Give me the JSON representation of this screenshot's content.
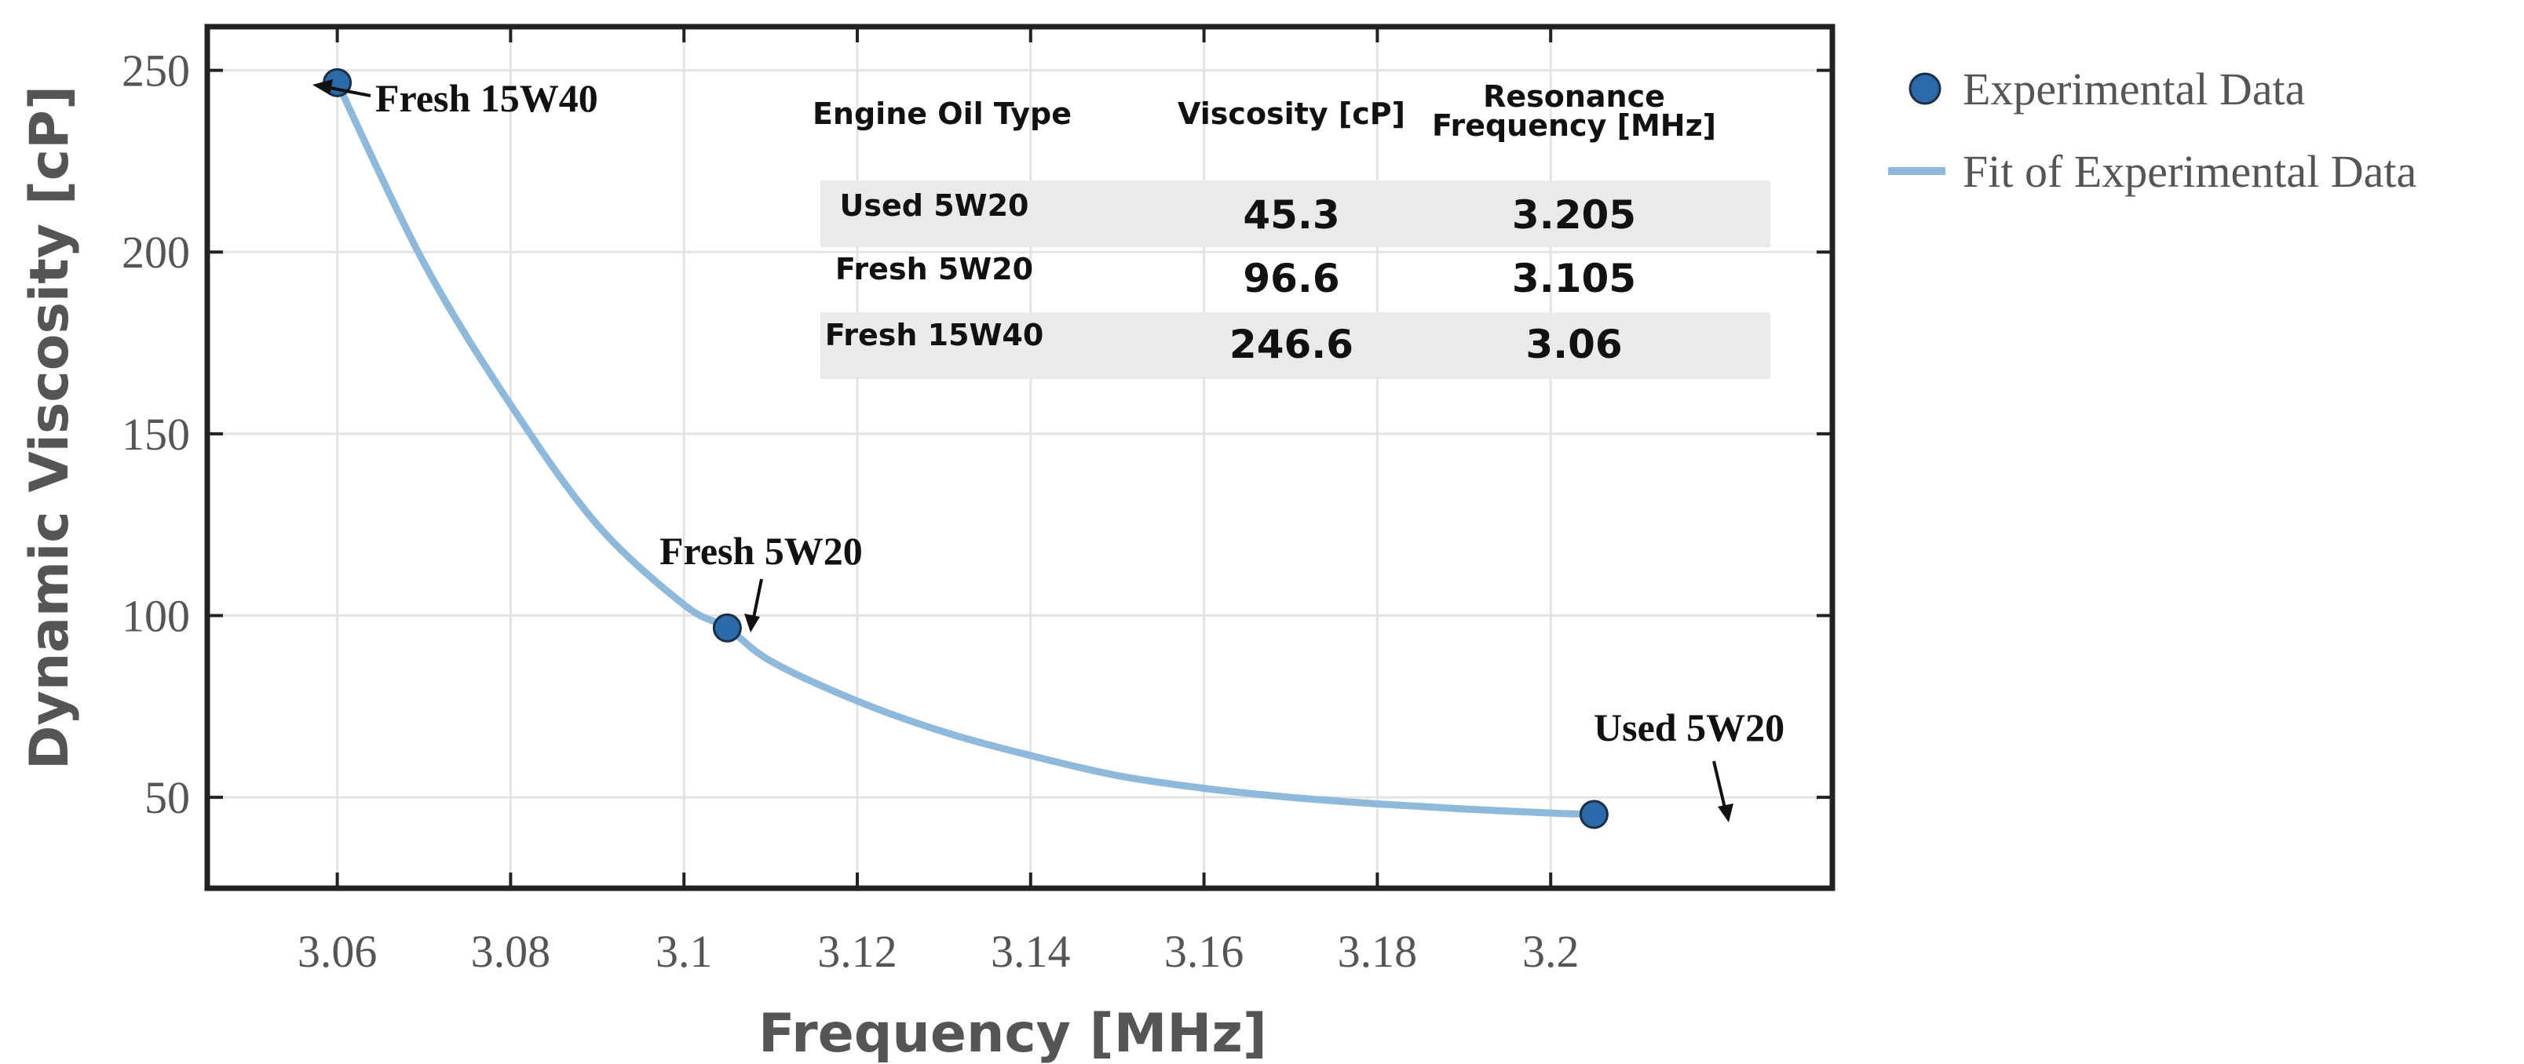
{
  "chart_data": {
    "type": "scatter",
    "xlabel": "Frequency [MHz]",
    "ylabel": "Dynamic Viscosity [cP]",
    "xlim": [
      3.045,
      3.2325
    ],
    "ylim": [
      25,
      262
    ],
    "x_ticks": [
      "3.06",
      "3.08",
      "3.1",
      "3.12",
      "3.14",
      "3.16",
      "3.18",
      "3.2"
    ],
    "x_tick_values": [
      3.06,
      3.08,
      3.1,
      3.12,
      3.14,
      3.16,
      3.18,
      3.2
    ],
    "y_ticks": [
      "50",
      "100",
      "150",
      "200",
      "250"
    ],
    "y_tick_values": [
      50,
      100,
      150,
      200,
      250
    ],
    "grid": true,
    "series": [
      {
        "name": "Experimental Data",
        "kind": "scatter",
        "color": "#2b6aa8",
        "points": [
          {
            "x": 3.06,
            "y": 246.6,
            "label": "Fresh 15W40"
          },
          {
            "x": 3.105,
            "y": 96.6,
            "label": "Fresh 5W20"
          },
          {
            "x": 3.205,
            "y": 45.3,
            "label": "Used 5W20"
          }
        ]
      },
      {
        "name": "Fit of Experimental Data",
        "kind": "line",
        "color": "#8fb9da",
        "x": [
          3.06,
          3.07,
          3.08,
          3.09,
          3.1,
          3.105,
          3.11,
          3.12,
          3.13,
          3.14,
          3.15,
          3.16,
          3.17,
          3.18,
          3.19,
          3.2,
          3.205
        ],
        "y": [
          246.6,
          197,
          158,
          125,
          103,
          96.6,
          87.5,
          76.5,
          68,
          61.5,
          56,
          52.5,
          50,
          48.2,
          46.8,
          45.7,
          45.3
        ]
      }
    ],
    "legend": {
      "position": "right",
      "entries": [
        "Experimental Data",
        "Fit of Experimental Data"
      ]
    },
    "annotations": [
      "Fresh 15W40",
      "Fresh 5W20",
      "Used 5W20"
    ],
    "inset_table": {
      "headers": [
        "Engine Oil Type",
        "Viscosity [cP]",
        "Resonance",
        "Frequency [MHz]"
      ],
      "rows": [
        [
          "Used 5W20",
          "45.3",
          "3.205"
        ],
        [
          "Fresh 5W20",
          "96.6",
          "3.105"
        ],
        [
          "Fresh 15W40",
          "246.6",
          "3.06"
        ]
      ],
      "stripe_color": "#eaeaea"
    }
  }
}
